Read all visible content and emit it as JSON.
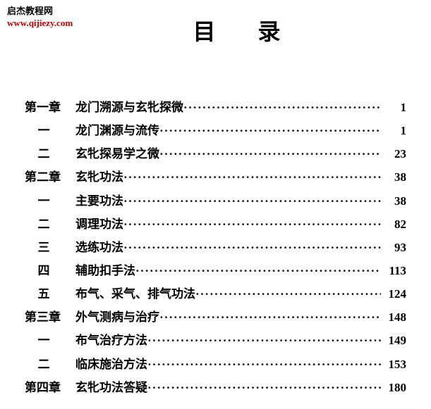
{
  "watermark": {
    "line1": "启杰教程网",
    "line2": "www.qijiezy.com"
  },
  "title": "目录",
  "dots": "········································································································",
  "entries": [
    {
      "type": "chapter",
      "label": "第一章",
      "text": "龙门溯源与玄牝探微",
      "page": "1"
    },
    {
      "type": "section",
      "label": "一",
      "text": "龙门渊源与流传",
      "page": "1"
    },
    {
      "type": "section",
      "label": "二",
      "text": "玄牝探易学之微",
      "page": "23"
    },
    {
      "type": "chapter",
      "label": "第二章",
      "text": "玄牝功法",
      "page": "38"
    },
    {
      "type": "section",
      "label": "一",
      "text": "主要功法",
      "page": "38"
    },
    {
      "type": "section",
      "label": "二",
      "text": "调理功法",
      "page": "82"
    },
    {
      "type": "section",
      "label": "三",
      "text": "选练功法",
      "page": "93"
    },
    {
      "type": "section",
      "label": "四",
      "text": "辅助扣手法",
      "page": "113"
    },
    {
      "type": "section",
      "label": "五",
      "text": "布气、采气、排气功法",
      "page": "124"
    },
    {
      "type": "chapter",
      "label": "第三章",
      "text": "外气测病与治疗",
      "page": "148"
    },
    {
      "type": "section",
      "label": "一",
      "text": "布气治疗方法",
      "page": "149"
    },
    {
      "type": "section",
      "label": "二",
      "text": "临床施治方法",
      "page": "153"
    },
    {
      "type": "chapter",
      "label": "第四章",
      "text": "玄牝功法答疑",
      "page": "180"
    }
  ]
}
